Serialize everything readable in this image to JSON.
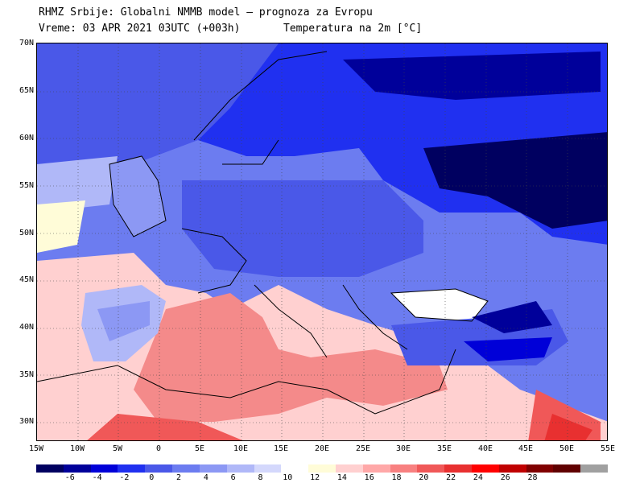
{
  "title": {
    "line1": "RHMZ Srbije: Globalni NMMB model — prognoza za Evropu",
    "line2": "Vreme: 03 APR 2021 03UTC (+003h)",
    "line3": "Temperatura na 2m [°C]"
  },
  "axes": {
    "lat_labels": [
      "70N",
      "65N",
      "60N",
      "55N",
      "50N",
      "45N",
      "40N",
      "35N",
      "30N"
    ],
    "lon_labels": [
      "15W",
      "10W",
      "5W",
      "0",
      "5E",
      "10E",
      "15E",
      "20E",
      "25E",
      "30E",
      "35E",
      "40E",
      "45E",
      "50E",
      "55E"
    ]
  },
  "colorbar": {
    "labels": [
      "-6",
      "-4",
      "-2",
      "0",
      "2",
      "4",
      "6",
      "8",
      "10",
      "12",
      "14",
      "16",
      "18",
      "20",
      "22",
      "24",
      "26",
      "28"
    ],
    "colors": [
      "#000060",
      "#00009a",
      "#0000d8",
      "#2030f0",
      "#4a58e8",
      "#6c7cf0",
      "#8c98f4",
      "#b0b8f8",
      "#d4d8fc",
      "#ffffff",
      "#fffcd8",
      "#ffd0d0",
      "#ffa8a8",
      "#f88080",
      "#f05858",
      "#e83030",
      "#ff0000",
      "#c00000",
      "#800000",
      "#600000",
      "#a0a0a0"
    ]
  },
  "map": {
    "domain": {
      "lon_min": -15,
      "lon_max": 55,
      "lat_min": 28,
      "lat_max": 70
    },
    "colors": {
      "warm_sea": "#f48a8a",
      "hot_land": "#f05858",
      "cool_land": "#8c98f4",
      "cold_land": "#2030f0",
      "very_cold": "#000060",
      "mild": "#ffd0d0",
      "white": "#ffffff"
    }
  }
}
